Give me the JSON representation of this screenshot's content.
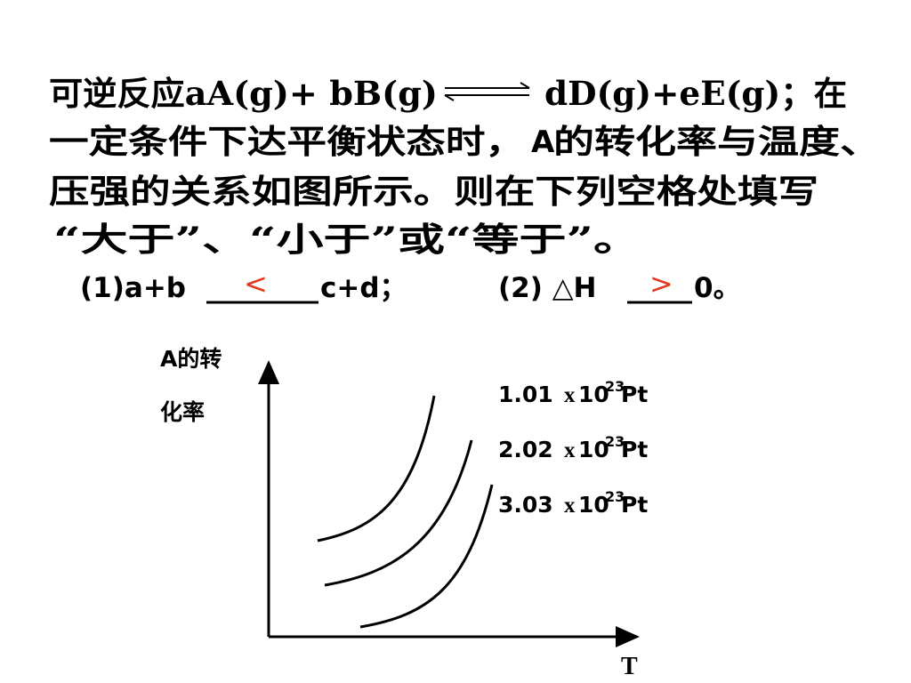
{
  "question": {
    "line1": {
      "start": "可逆反应aA(g)+ bB(g)",
      "end": "dD(g)+eE(g)；在"
    },
    "line2": {
      "start": "一定条件下达平衡状态时，",
      "species": "A",
      "end": "的转化率与温度、"
    },
    "line3": "压强的关系如图所示。则在下列空格处填写",
    "line4": "“大于”、“小于”或“等于”。"
  },
  "answers": {
    "part1": {
      "left": "(1)a+b",
      "answer": "<",
      "right": "c+d；"
    },
    "part2": {
      "left": "(2) △H",
      "answer": ">",
      "right": "0。"
    }
  },
  "diagram": {
    "y_label": [
      "A的转",
      "化率"
    ],
    "x_label": "T",
    "curves": [
      {
        "value": "1.01",
        "times": "x",
        "base": "10",
        "exp": "23",
        "unit": "Pt"
      },
      {
        "value": "2.02",
        "times": "x",
        "base": "10",
        "exp": "23",
        "unit": "Pt"
      },
      {
        "value": "3.03",
        "times": "x",
        "base": "10",
        "exp": "23",
        "unit": "Pt"
      }
    ]
  }
}
